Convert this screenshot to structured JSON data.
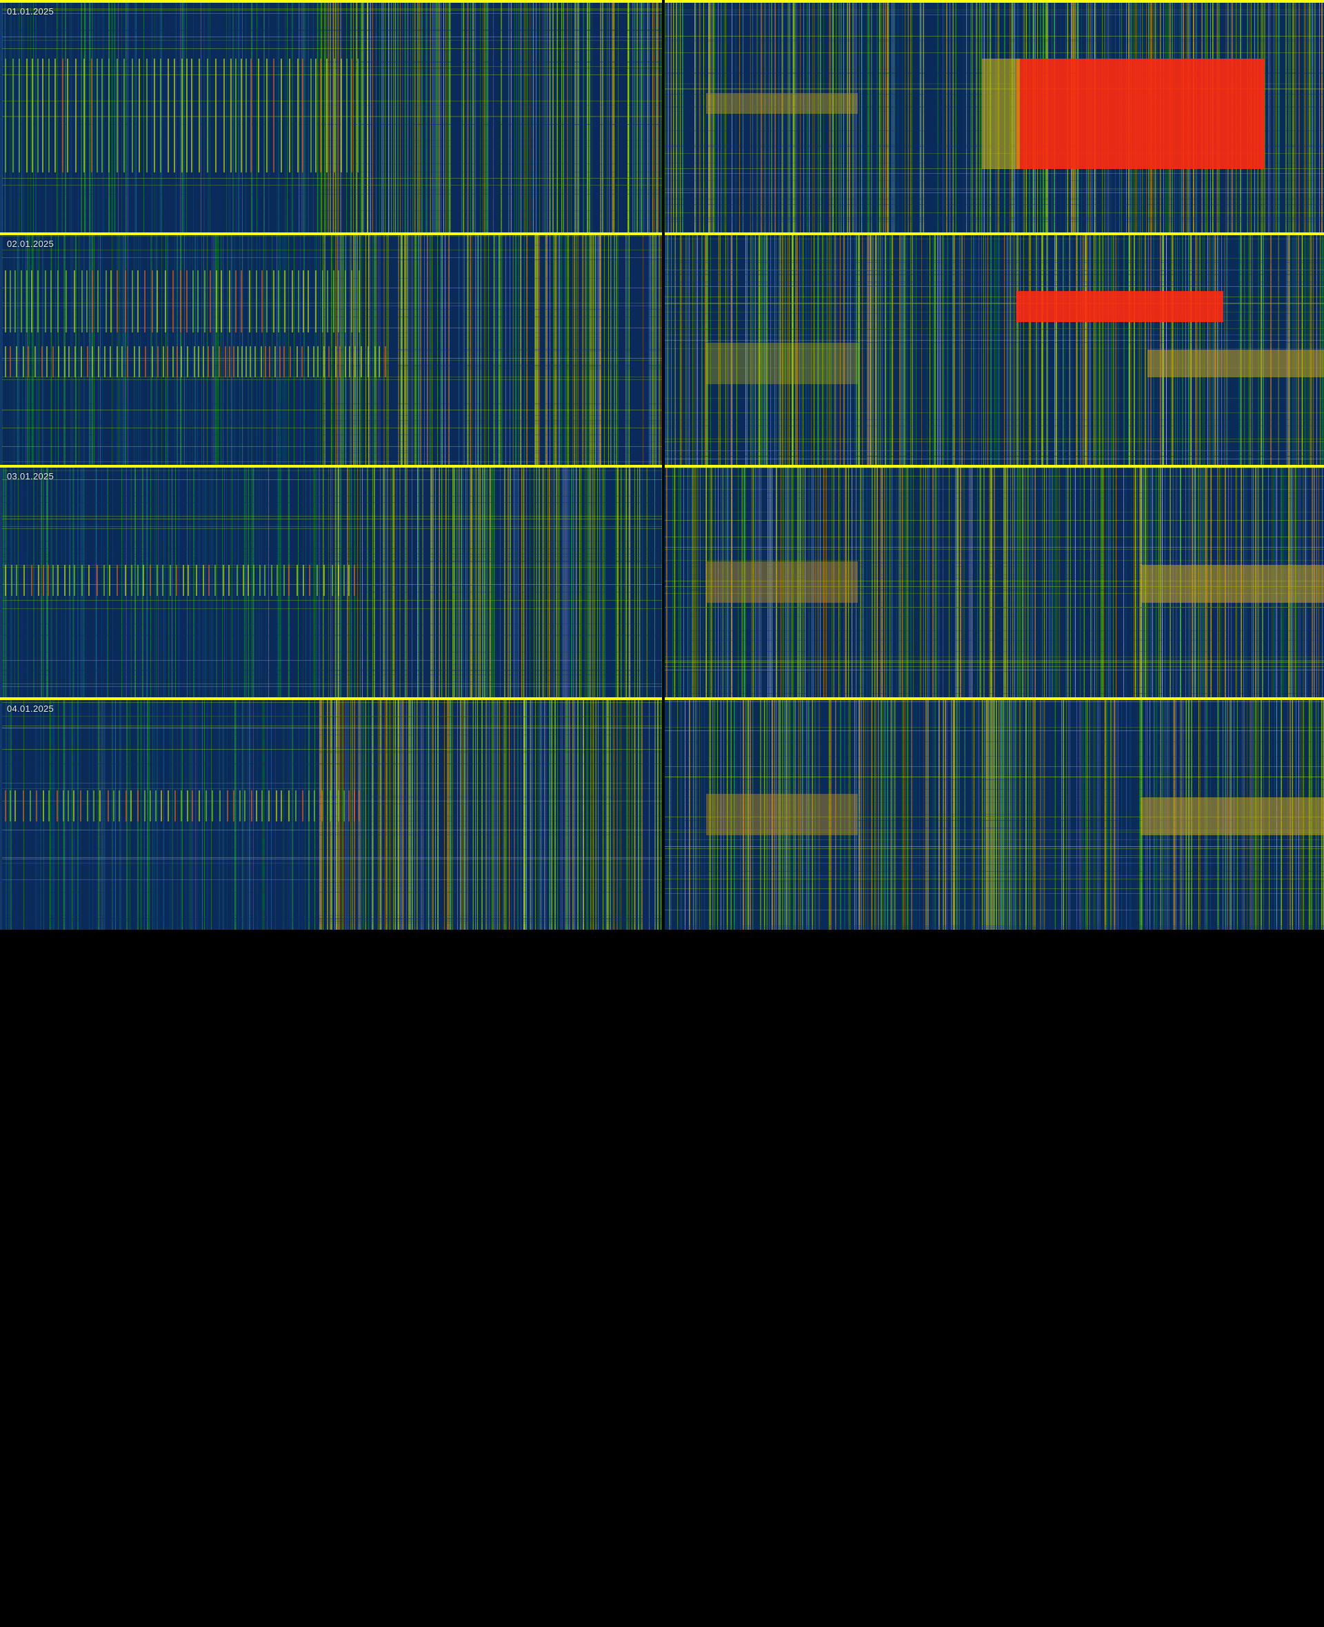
{
  "days": [
    {
      "date": "01.01.2025"
    },
    {
      "date": "02.01.2025"
    },
    {
      "date": "03.01.2025"
    },
    {
      "date": "04.01.2025"
    }
  ],
  "colors": {
    "low": "#0b2e66",
    "mid": "#1a8a3a",
    "high": "#b8d40a",
    "peak": "#ff2a10",
    "day_separator": "#ffff10",
    "background": "#000000"
  }
}
